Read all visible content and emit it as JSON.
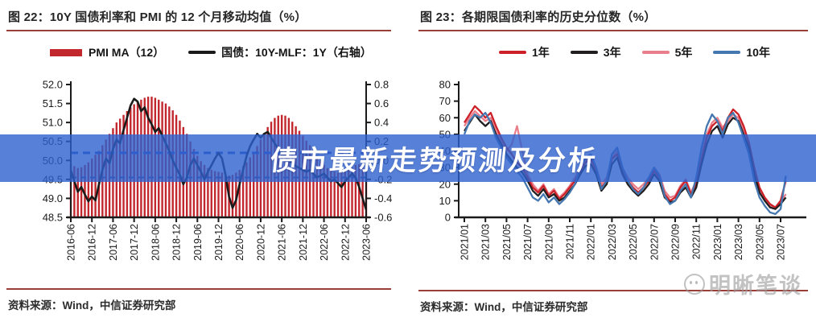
{
  "banner": {
    "text": "债市最新走势预测及分析",
    "background": "#2d62ce",
    "text_color": "#ffffff"
  },
  "source_left": {
    "label": "资料来源：Wind，中信证券研究部"
  },
  "source_right": {
    "label": "资料来源：Wind，中信证券研究部"
  },
  "watermark": {
    "text": "明晰笔谈"
  },
  "chart_data": [
    {
      "type": "bar",
      "subtype": "bar+line-dual-axis",
      "title": "图 22：10Y 国债利率和 PMI 的 12 个月移动均值（%）",
      "legend": [
        {
          "name": "PMI MA（12）",
          "color": "#c1272d",
          "swatch": "bar"
        },
        {
          "name": "国债：10Y-MLF：1Y（右轴）",
          "color": "#1a1a1a",
          "swatch": "line"
        }
      ],
      "x_monthly_range": [
        "2016-06",
        "2023-06"
      ],
      "x_tick_labels": [
        "2016-06",
        "2016-12",
        "2017-06",
        "2017-12",
        "2018-06",
        "2018-12",
        "2019-06",
        "2019-12",
        "2020-06",
        "2020-12",
        "2021-06",
        "2021-12",
        "2022-06",
        "2022-12",
        "2023-06"
      ],
      "left_axis": {
        "min": 48.5,
        "max": 52.0,
        "ticks": [
          "52.0",
          "51.5",
          "51.0",
          "50.5",
          "50.0",
          "49.5",
          "49.0",
          "48.5"
        ]
      },
      "right_axis": {
        "min": -0.6,
        "max": 0.8,
        "ticks": [
          "0.8",
          "0.6",
          "0.4",
          "0.2",
          "0.0",
          "-0.2",
          "-0.4",
          "-0.6"
        ]
      },
      "reference_lines": [
        {
          "axis": "left",
          "value": 50.2,
          "color": "#2a52c8",
          "width": 3,
          "dash": "9 6"
        },
        {
          "axis": "left",
          "value": 49.55,
          "color": "#2c4390",
          "width": 2,
          "dash": "7 5"
        }
      ],
      "bars": {
        "name": "PMI MA（12）",
        "axis": "left",
        "color": "#c1272d",
        "values": [
          49.9,
          49.85,
          49.8,
          49.82,
          49.88,
          49.95,
          50.05,
          50.15,
          50.25,
          50.4,
          50.55,
          50.7,
          50.85,
          51.0,
          51.1,
          51.2,
          51.3,
          51.4,
          51.48,
          51.55,
          51.6,
          51.65,
          51.68,
          51.68,
          51.65,
          51.6,
          51.55,
          51.5,
          51.42,
          51.32,
          51.2,
          51.05,
          50.88,
          50.7,
          50.5,
          50.3,
          50.12,
          49.98,
          49.88,
          49.8,
          49.75,
          49.72,
          49.7,
          49.68,
          49.62,
          49.6,
          49.62,
          49.68,
          49.75,
          49.85,
          49.95,
          50.08,
          50.22,
          50.38,
          50.55,
          50.72,
          50.88,
          51.02,
          51.12,
          51.18,
          51.2,
          51.18,
          51.12,
          51.02,
          50.9,
          50.78,
          50.65,
          50.52,
          50.4,
          50.28,
          50.12,
          49.98,
          49.88,
          49.8,
          49.74,
          49.7,
          49.68,
          49.68,
          49.7,
          49.75,
          49.82,
          49.88,
          49.9,
          49.88,
          49.82
        ]
      },
      "line": {
        "name": "国债：10Y-MLF：1Y（右轴）",
        "axis": "right",
        "color": "#1a1a1a",
        "values": [
          -0.1,
          -0.22,
          -0.33,
          -0.28,
          -0.36,
          -0.43,
          -0.38,
          -0.42,
          -0.25,
          -0.1,
          0.02,
          -0.03,
          0.12,
          0.22,
          0.18,
          0.32,
          0.45,
          0.58,
          0.65,
          0.62,
          0.52,
          0.56,
          0.45,
          0.38,
          0.3,
          0.34,
          0.26,
          0.18,
          0.1,
          0.0,
          -0.08,
          -0.15,
          -0.25,
          -0.18,
          -0.05,
          0.02,
          -0.05,
          -0.12,
          -0.2,
          -0.12,
          -0.05,
          0.02,
          0.08,
          0.02,
          -0.15,
          -0.38,
          -0.5,
          -0.42,
          -0.25,
          -0.1,
          0.05,
          0.15,
          0.22,
          0.28,
          0.24,
          0.28,
          0.3,
          0.24,
          0.18,
          0.12,
          0.08,
          0.04,
          0.0,
          -0.03,
          -0.06,
          -0.08,
          -0.1,
          -0.12,
          -0.1,
          -0.14,
          -0.18,
          -0.16,
          -0.14,
          -0.18,
          -0.22,
          -0.2,
          -0.24,
          -0.28,
          -0.22,
          -0.18,
          -0.14,
          -0.18,
          -0.28,
          -0.4,
          -0.52
        ]
      }
    },
    {
      "type": "line",
      "title": "图 23：各期限国债利率的历史分位数（%）",
      "x_halfmonthly_range": [
        "2021/01",
        "2023/07"
      ],
      "x_tick_labels": [
        "2021/01",
        "2021/03",
        "2021/05",
        "2021/07",
        "2021/09",
        "2021/11",
        "2022/01",
        "2022/03",
        "2022/05",
        "2022/07",
        "2022/09",
        "2022/11",
        "2023/01",
        "2023/03",
        "2023/05",
        "2023/07"
      ],
      "y_axis": {
        "min": 0,
        "max": 80,
        "ticks": [
          "80",
          "70",
          "60",
          "50",
          "40",
          "30",
          "20",
          "10",
          "0"
        ]
      },
      "series": [
        {
          "name": "1年",
          "color": "#cc2128",
          "values": [
            57,
            62,
            67,
            64,
            60,
            63,
            55,
            48,
            42,
            38,
            33,
            30,
            24,
            18,
            15,
            19,
            13,
            16,
            11,
            14,
            18,
            22,
            28,
            33,
            35,
            28,
            18,
            22,
            35,
            38,
            28,
            22,
            18,
            15,
            18,
            22,
            28,
            24,
            14,
            10,
            12,
            18,
            22,
            14,
            20,
            35,
            48,
            55,
            58,
            52,
            60,
            65,
            62,
            55,
            45,
            30,
            18,
            12,
            8,
            6,
            10,
            22
          ]
        },
        {
          "name": "3年",
          "color": "#231f20",
          "values": [
            52,
            57,
            62,
            58,
            55,
            58,
            50,
            44,
            38,
            34,
            30,
            27,
            22,
            16,
            13,
            17,
            12,
            14,
            10,
            12,
            16,
            20,
            26,
            31,
            32,
            26,
            16,
            20,
            32,
            36,
            26,
            20,
            16,
            13,
            16,
            20,
            26,
            22,
            12,
            9,
            10,
            15,
            18,
            12,
            18,
            32,
            44,
            52,
            55,
            48,
            56,
            60,
            58,
            50,
            42,
            26,
            15,
            10,
            6,
            5,
            8,
            12
          ]
        },
        {
          "name": "5年",
          "color": "#ea7f8c",
          "values": [
            55,
            60,
            64,
            61,
            58,
            60,
            52,
            46,
            40,
            44,
            55,
            40,
            26,
            20,
            16,
            20,
            14,
            17,
            12,
            15,
            19,
            24,
            30,
            34,
            36,
            30,
            20,
            24,
            36,
            40,
            30,
            24,
            20,
            17,
            20,
            24,
            30,
            26,
            16,
            12,
            13,
            19,
            23,
            15,
            22,
            38,
            50,
            57,
            60,
            54,
            58,
            62,
            60,
            52,
            44,
            28,
            16,
            11,
            7,
            5,
            9,
            14
          ]
        },
        {
          "name": "10年",
          "color": "#4577b0",
          "values": [
            50,
            58,
            62,
            60,
            63,
            57,
            48,
            42,
            36,
            32,
            28,
            24,
            18,
            12,
            10,
            14,
            9,
            12,
            8,
            11,
            15,
            20,
            30,
            36,
            38,
            30,
            17,
            22,
            38,
            42,
            30,
            22,
            17,
            14,
            18,
            24,
            30,
            25,
            13,
            8,
            10,
            16,
            20,
            12,
            24,
            42,
            55,
            62,
            58,
            50,
            60,
            63,
            57,
            48,
            38,
            22,
            12,
            7,
            3,
            2,
            5,
            25
          ]
        }
      ]
    }
  ]
}
